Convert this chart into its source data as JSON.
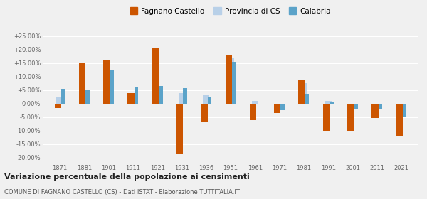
{
  "years": [
    1871,
    1881,
    1901,
    1911,
    1921,
    1931,
    1936,
    1951,
    1961,
    1971,
    1981,
    1991,
    2001,
    2011,
    2021
  ],
  "fagnano": [
    -1.5,
    14.8,
    16.2,
    4.0,
    20.5,
    -18.5,
    -6.5,
    18.0,
    -6.2,
    -3.5,
    8.5,
    -10.2,
    -10.0,
    -5.2,
    -12.0
  ],
  "provincia": [
    2.5,
    4.8,
    6.2,
    3.8,
    4.5,
    4.0,
    3.2,
    16.8,
    1.0,
    -0.5,
    7.5,
    1.0,
    -1.5,
    -2.0,
    -0.5
  ],
  "calabria": [
    5.5,
    5.0,
    12.5,
    6.0,
    6.5,
    5.8,
    2.5,
    15.5,
    0.0,
    -2.5,
    3.5,
    0.8,
    -2.0,
    -2.0,
    -5.0
  ],
  "calabria_mask": [
    1,
    1,
    1,
    1,
    1,
    1,
    1,
    1,
    0,
    1,
    1,
    1,
    1,
    1,
    1
  ],
  "fagnano_color": "#cc5500",
  "provincia_color": "#b8d0e8",
  "calabria_color": "#5ba3c9",
  "bg_color": "#f0f0f0",
  "grid_color": "#ffffff",
  "title1": "Variazione percentuale della popolazione ai censimenti",
  "title2": "COMUNE DI FAGNANO CASTELLO (CS) - Dati ISTAT - Elaborazione TUTTITALIA.IT",
  "ylim": [
    -22,
    28
  ],
  "yticks": [
    -20,
    -15,
    -10,
    -5,
    0,
    5,
    10,
    15,
    20,
    25
  ],
  "ytick_labels": [
    "-20.00%",
    "-15.00%",
    "-10.00%",
    "-5.00%",
    "0.00%",
    "+5.00%",
    "+10.00%",
    "+15.00%",
    "+20.00%",
    "+25.00%"
  ]
}
